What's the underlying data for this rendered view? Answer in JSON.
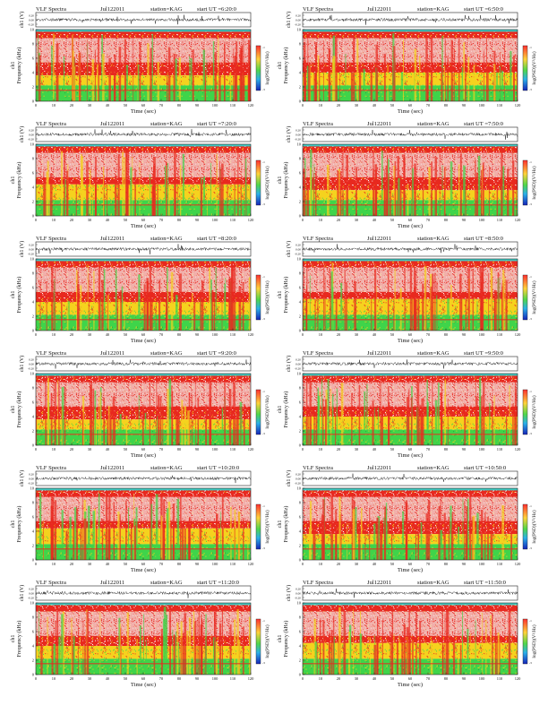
{
  "chart_data": [
    {
      "type": "heatmap",
      "header_left": "VLF Spectra",
      "date": "Jul122011",
      "station": "station=KAG",
      "start": "start UT =6:20:0",
      "line_ylabel": "ch1 (V)",
      "line_yticks": [
        "0.20",
        "0.00",
        "-0.20"
      ],
      "ylabel": "Frequency (kHz)",
      "ylabel2": "ch1",
      "xlabel": "Time (sec)",
      "xticks": [
        "0",
        "10",
        "20",
        "30",
        "40",
        "50",
        "60",
        "70",
        "80",
        "90",
        "100",
        "110",
        "120"
      ],
      "xlim": [
        0,
        120
      ],
      "yticks": [
        "0",
        "2",
        "4",
        "6",
        "8",
        "10"
      ],
      "ylim": [
        0,
        10
      ],
      "colorbar_label": "log(PSD)(V²/Hz)",
      "colorbar_ticks": [
        "-1",
        "-3"
      ]
    },
    {
      "type": "heatmap",
      "header_left": "VLF Spectra",
      "date": "Jul122011",
      "station": "station=KAG",
      "start": "start UT =6:50:0",
      "line_ylabel": "ch1 (V)",
      "line_yticks": [
        "0.20",
        "0.00",
        "-0.20"
      ],
      "ylabel": "Frequency (kHz)",
      "ylabel2": "ch1",
      "xlabel": "Time (sec)",
      "xticks": [
        "0",
        "10",
        "20",
        "30",
        "40",
        "50",
        "60",
        "70",
        "80",
        "90",
        "100",
        "110",
        "120"
      ],
      "xlim": [
        0,
        120
      ],
      "yticks": [
        "0",
        "2",
        "4",
        "6",
        "8",
        "10"
      ],
      "ylim": [
        0,
        10
      ],
      "colorbar_label": "log(PSD)(V²/Hz)",
      "colorbar_ticks": [
        "-1",
        "-3"
      ]
    },
    {
      "type": "heatmap",
      "header_left": "VLF Spectra",
      "date": "Jul122011",
      "station": "station=KAG",
      "start": "start UT =7:20:0",
      "line_ylabel": "ch1 (V)",
      "line_yticks": [
        "0.20",
        "0.00",
        "-0.20"
      ],
      "ylabel": "Frequency (kHz)",
      "ylabel2": "ch1",
      "xlabel": "Time (sec)",
      "xticks": [
        "0",
        "10",
        "20",
        "30",
        "40",
        "50",
        "60",
        "70",
        "80",
        "90",
        "100",
        "110",
        "120"
      ],
      "xlim": [
        0,
        120
      ],
      "yticks": [
        "0",
        "2",
        "4",
        "6",
        "8",
        "10"
      ],
      "ylim": [
        0,
        10
      ],
      "colorbar_label": "log(PSD)(V²/Hz)",
      "colorbar_ticks": [
        "-1",
        "-3"
      ]
    },
    {
      "type": "heatmap",
      "header_left": "VLF Spectra",
      "date": "Jul122011",
      "station": "station=KAG",
      "start": "start UT =7:50:0",
      "line_ylabel": "ch1 (V)",
      "line_yticks": [
        "0.20",
        "0.00",
        "-0.20"
      ],
      "ylabel": "Frequency (kHz)",
      "ylabel2": "ch1",
      "xlabel": "Time (sec)",
      "xticks": [
        "0",
        "10",
        "20",
        "30",
        "40",
        "50",
        "60",
        "70",
        "80",
        "90",
        "100",
        "110",
        "120"
      ],
      "xlim": [
        0,
        120
      ],
      "yticks": [
        "0",
        "2",
        "4",
        "6",
        "8",
        "10"
      ],
      "ylim": [
        0,
        10
      ],
      "colorbar_label": "log(PSD)(V²/Hz)",
      "colorbar_ticks": [
        "-1",
        "-3"
      ]
    },
    {
      "type": "heatmap",
      "header_left": "VLF Spectra",
      "date": "Jul122011",
      "station": "station=KAG",
      "start": "start UT =8:20:0",
      "line_ylabel": "ch1 (V)",
      "line_yticks": [
        "0.20",
        "0.00",
        "-0.20"
      ],
      "ylabel": "Frequency (kHz)",
      "ylabel2": "ch1",
      "xlabel": "Time (sec)",
      "xticks": [
        "0",
        "10",
        "20",
        "30",
        "40",
        "50",
        "60",
        "70",
        "80",
        "90",
        "100",
        "110",
        "120"
      ],
      "xlim": [
        0,
        120
      ],
      "yticks": [
        "0",
        "2",
        "4",
        "6",
        "8",
        "10"
      ],
      "ylim": [
        0,
        10
      ],
      "colorbar_label": "log(PSD)(V²/Hz)",
      "colorbar_ticks": [
        "-1",
        "-3"
      ]
    },
    {
      "type": "heatmap",
      "header_left": "VLF Spectra",
      "date": "Jul122011",
      "station": "station=KAG",
      "start": "start UT =8:50:0",
      "line_ylabel": "ch1 (V)",
      "line_yticks": [
        "0.20",
        "0.00",
        "-0.20"
      ],
      "ylabel": "Frequency (kHz)",
      "ylabel2": "ch1",
      "xlabel": "Time (sec)",
      "xticks": [
        "0",
        "10",
        "20",
        "30",
        "40",
        "50",
        "60",
        "70",
        "80",
        "90",
        "100",
        "110",
        "120"
      ],
      "xlim": [
        0,
        120
      ],
      "yticks": [
        "0",
        "2",
        "4",
        "6",
        "8",
        "10"
      ],
      "ylim": [
        0,
        10
      ],
      "colorbar_label": "log(PSD)(V²/Hz)",
      "colorbar_ticks": [
        "-1",
        "-3"
      ]
    },
    {
      "type": "heatmap",
      "header_left": "VLF Spectra",
      "date": "Jul122011",
      "station": "station=KAG",
      "start": "start UT =9:20:0",
      "line_ylabel": "ch1 (V)",
      "line_yticks": [
        "0.20",
        "0.00",
        "-0.20"
      ],
      "ylabel": "Frequency (kHz)",
      "ylabel2": "ch1",
      "xlabel": "Time (sec)",
      "xticks": [
        "0",
        "10",
        "20",
        "30",
        "40",
        "50",
        "60",
        "70",
        "80",
        "90",
        "100",
        "110",
        "120"
      ],
      "xlim": [
        0,
        120
      ],
      "yticks": [
        "0",
        "2",
        "4",
        "6",
        "8",
        "10"
      ],
      "ylim": [
        0,
        10
      ],
      "colorbar_label": "log(PSD)(V²/Hz)",
      "colorbar_ticks": [
        "-1",
        "-3"
      ]
    },
    {
      "type": "heatmap",
      "header_left": "VLF Spectra",
      "date": "Jul122011",
      "station": "station=KAG",
      "start": "start UT =9:50:0",
      "line_ylabel": "ch1 (V)",
      "line_yticks": [
        "0.20",
        "0.00",
        "-0.20"
      ],
      "ylabel": "Frequency (kHz)",
      "ylabel2": "ch1",
      "xlabel": "Time (sec)",
      "xticks": [
        "0",
        "10",
        "20",
        "30",
        "40",
        "50",
        "60",
        "70",
        "80",
        "90",
        "100",
        "110",
        "120"
      ],
      "xlim": [
        0,
        120
      ],
      "yticks": [
        "0",
        "2",
        "4",
        "6",
        "8",
        "10"
      ],
      "ylim": [
        0,
        10
      ],
      "colorbar_label": "log(PSD)(V²/Hz)",
      "colorbar_ticks": [
        "-1",
        "-3"
      ]
    },
    {
      "type": "heatmap",
      "header_left": "VLF Spectra",
      "date": "Jul122011",
      "station": "station=KAG",
      "start": "start UT =10:20:0",
      "line_ylabel": "ch1 (V)",
      "line_yticks": [
        "0.20",
        "0.00",
        "-0.20"
      ],
      "ylabel": "Frequency (kHz)",
      "ylabel2": "ch1",
      "xlabel": "Time (sec)",
      "xticks": [
        "0",
        "10",
        "20",
        "30",
        "40",
        "50",
        "60",
        "70",
        "80",
        "90",
        "100",
        "110",
        "120"
      ],
      "xlim": [
        0,
        120
      ],
      "yticks": [
        "0",
        "2",
        "4",
        "6",
        "8",
        "10"
      ],
      "ylim": [
        0,
        10
      ],
      "colorbar_label": "log(PSD)(V²/Hz)",
      "colorbar_ticks": [
        "-1",
        "-3"
      ]
    },
    {
      "type": "heatmap",
      "header_left": "VLF Spectra",
      "date": "Jul122011",
      "station": "station=KAG",
      "start": "start UT =10:50:0",
      "line_ylabel": "ch1 (V)",
      "line_yticks": [
        "0.20",
        "0.00",
        "-0.20"
      ],
      "ylabel": "Frequency (kHz)",
      "ylabel2": "ch1",
      "xlabel": "Time (sec)",
      "xticks": [
        "0",
        "10",
        "20",
        "30",
        "40",
        "50",
        "60",
        "70",
        "80",
        "90",
        "100",
        "110",
        "120"
      ],
      "xlim": [
        0,
        120
      ],
      "yticks": [
        "0",
        "2",
        "4",
        "6",
        "8",
        "10"
      ],
      "ylim": [
        0,
        10
      ],
      "colorbar_label": "log(PSD)(V²/Hz)",
      "colorbar_ticks": [
        "-1",
        "-3"
      ]
    },
    {
      "type": "heatmap",
      "header_left": "VLF Spectra",
      "date": "Jul122011",
      "station": "station=KAG",
      "start": "start UT =11:20:0",
      "line_ylabel": "ch1 (V)",
      "line_yticks": [
        "0.20",
        "0.00",
        "-0.20"
      ],
      "ylabel": "Frequency (kHz)",
      "ylabel2": "ch1",
      "xlabel": "Time (sec)",
      "xticks": [
        "0",
        "10",
        "20",
        "30",
        "40",
        "50",
        "60",
        "70",
        "80",
        "90",
        "100",
        "110",
        "120"
      ],
      "xlim": [
        0,
        120
      ],
      "yticks": [
        "0",
        "2",
        "4",
        "6",
        "8",
        "10"
      ],
      "ylim": [
        0,
        10
      ],
      "colorbar_label": "log(PSD)(V²/Hz)",
      "colorbar_ticks": [
        "-1",
        "-3"
      ]
    },
    {
      "type": "heatmap",
      "header_left": "VLF Spectra",
      "date": "Jul122011",
      "station": "station=KAG",
      "start": "start UT =11:50:0",
      "line_ylabel": "ch1 (V)",
      "line_yticks": [
        "0.20",
        "0.00",
        "-0.20"
      ],
      "ylabel": "Frequency (kHz)",
      "ylabel2": "ch1",
      "xlabel": "Time (sec)",
      "xticks": [
        "0",
        "10",
        "20",
        "30",
        "40",
        "50",
        "60",
        "70",
        "80",
        "90",
        "100",
        "110",
        "120"
      ],
      "xlim": [
        0,
        120
      ],
      "yticks": [
        "0",
        "2",
        "4",
        "6",
        "8",
        "10"
      ],
      "ylim": [
        0,
        10
      ],
      "colorbar_label": "log(PSD)(V²/Hz)",
      "colorbar_ticks": [
        "-1",
        "-3"
      ]
    }
  ],
  "colors": {
    "high": "#e8291f",
    "mid": "#f5d21e",
    "low": "#3fd44a",
    "floor": "#41c8c0",
    "dense": "#ffffff"
  }
}
